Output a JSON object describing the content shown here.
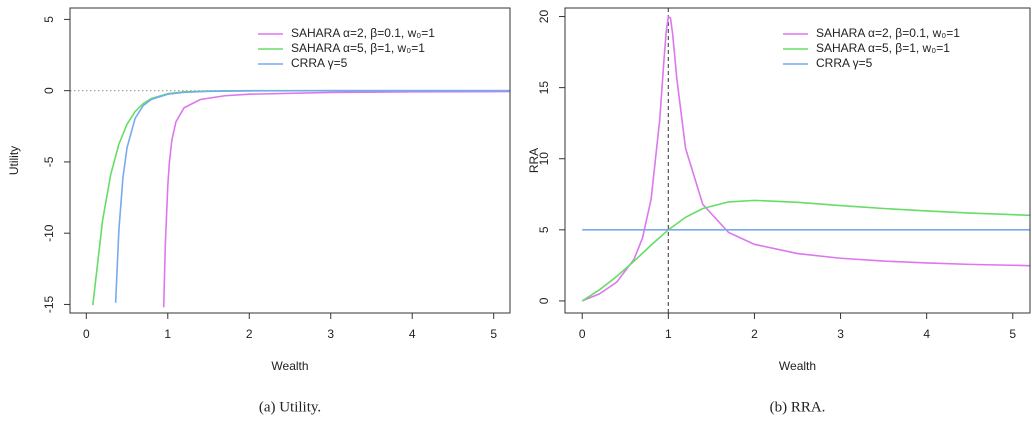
{
  "chart_data": [
    {
      "type": "line",
      "caption": "(a) Utility.",
      "xlabel": "Wealth",
      "ylabel": "Utility",
      "xlim": [
        -0.2,
        5.2
      ],
      "xticks": [
        0,
        1,
        2,
        3,
        4,
        5
      ],
      "ylim": [
        -15.6,
        5.8
      ],
      "yticks": [
        -15,
        -10,
        -5,
        0,
        5
      ],
      "refline": {
        "axis": "y",
        "value": 0,
        "style": "dotted"
      },
      "series": [
        {
          "name": "SAHARA α=2, β=0.1, w₀=1",
          "color": "#dd77ee",
          "x": [
            0.95,
            0.97,
            1,
            1.02,
            1.05,
            1.1,
            1.2,
            1.4,
            1.7,
            2,
            3,
            4,
            5.2
          ],
          "values": [
            -15.2,
            -10.77,
            -6.67,
            -5.02,
            -3.48,
            -2.19,
            -1.2,
            -0.62,
            -0.356,
            -0.25,
            -0.125,
            -0.0833,
            -0.0595
          ]
        },
        {
          "name": "SAHARA α=5, β=1, w₀=1",
          "color": "#66dd66",
          "x": [
            0.08,
            0.2,
            0.3,
            0.4,
            0.5,
            0.6,
            0.7,
            0.8,
            1,
            1.2,
            1.5,
            2,
            3,
            5.2
          ],
          "values": [
            -15.05,
            -9.1,
            -5.88,
            -3.75,
            -2.35,
            -1.46,
            -0.9,
            -0.55,
            -0.208,
            -0.082,
            -0.023,
            -0.0041,
            -0.0003,
            0
          ]
        },
        {
          "name": "CRRA γ=5",
          "color": "#77aaee",
          "x": [
            0.36,
            0.4,
            0.45,
            0.5,
            0.6,
            0.7,
            0.8,
            1,
            1.2,
            1.5,
            2,
            3,
            5.2
          ],
          "values": [
            -14.88,
            -9.77,
            -6.1,
            -4,
            -1.93,
            -1.04,
            -0.61,
            -0.25,
            -0.12,
            -0.049,
            -0.0156,
            -0.003,
            -0.0003
          ]
        }
      ]
    },
    {
      "type": "line",
      "caption": "(b) RRA.",
      "xlabel": "Wealth",
      "ylabel": "RRA",
      "xlim": [
        -0.2,
        5.2
      ],
      "xticks": [
        0,
        1,
        2,
        3,
        4,
        5
      ],
      "ylim": [
        -0.85,
        20.6
      ],
      "yticks": [
        0,
        5,
        10,
        15,
        20
      ],
      "refline": {
        "axis": "x",
        "value": 1,
        "style": "dashed"
      },
      "series": [
        {
          "name": "SAHARA α=2, β=0.1, w₀=1",
          "color": "#dd77ee",
          "x": [
            0,
            0.2,
            0.4,
            0.6,
            0.7,
            0.8,
            0.9,
            0.95,
            0.975,
            1,
            1.025,
            1.05,
            1.1,
            1.2,
            1.4,
            1.7,
            2,
            2.5,
            3,
            3.5,
            4,
            4.5,
            5.2
          ],
          "values": [
            0,
            0.496,
            1.315,
            2.91,
            4.427,
            7.155,
            12.73,
            16.99,
            18.92,
            20,
            19.89,
            18.78,
            15.56,
            10.73,
            6.79,
            4.81,
            3.98,
            3.33,
            3,
            2.8,
            2.67,
            2.57,
            2.48
          ]
        },
        {
          "name": "SAHARA α=5, β=1, w₀=1",
          "color": "#66dd66",
          "x": [
            0,
            0.2,
            0.4,
            0.6,
            0.8,
            1,
            1.2,
            1.4,
            1.7,
            2,
            2.5,
            3,
            3.5,
            4,
            4.5,
            5.2
          ],
          "values": [
            0,
            0.781,
            1.715,
            2.786,
            3.922,
            5,
            5.884,
            6.5,
            6.963,
            7.071,
            6.934,
            6.708,
            6.499,
            6.325,
            6.181,
            6.022
          ]
        },
        {
          "name": "CRRA γ=5",
          "color": "#77aaee",
          "x": [
            0,
            5.2
          ],
          "values": [
            5,
            5
          ]
        }
      ]
    }
  ]
}
